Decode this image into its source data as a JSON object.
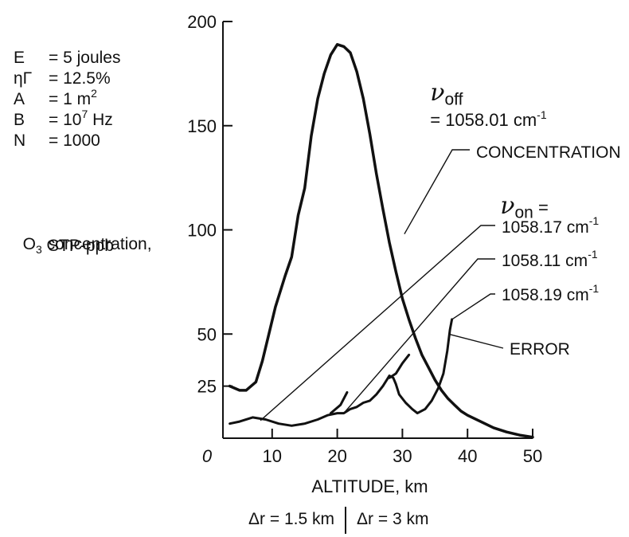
{
  "chart_data": {
    "type": "line",
    "xlabel": "ALTITUDE, km",
    "ylabel": "O3 concentration, STP-ppb",
    "xlim": [
      0,
      50
    ],
    "ylim": [
      0,
      200
    ],
    "x_ticks": [
      "0",
      "10",
      "20",
      "30",
      "40",
      "50"
    ],
    "y_ticks": [
      "25",
      "50",
      "100",
      "150",
      "200"
    ],
    "parameters": [
      {
        "name": "E",
        "value": "= 5 joules"
      },
      {
        "name": "ηΓ",
        "value": "= 12.5%"
      },
      {
        "name": "A",
        "value": "= 1 m",
        "sup": "2"
      },
      {
        "name": "B",
        "value_pre": "= 10",
        "sup": "7",
        "value_post": " Hz"
      },
      {
        "name": "N",
        "value": "= 1000"
      }
    ],
    "ylabel_main": "O",
    "ylabel_sub": "3",
    "ylabel_rest": " concentration,",
    "ylabel_line2": "STP-ppb",
    "nu_off_label": "ν",
    "nu_off_sub": "off",
    "nu_off_value": "= 1058.01 cm",
    "nu_off_exp": "-1",
    "nu_on_label": "ν",
    "nu_on_sub": "on",
    "nu_on_eq": "=",
    "series": [
      {
        "name": "CONCENTRATION",
        "x": [
          3.5,
          5,
          6,
          7.5,
          8.5,
          9.5,
          10.5,
          12,
          13,
          14,
          15,
          16,
          17,
          18,
          19,
          20,
          21,
          22,
          23,
          24,
          25,
          26,
          27,
          28,
          29,
          30,
          31,
          32,
          33,
          34,
          35,
          36,
          37,
          38,
          39,
          40,
          42,
          44,
          46,
          48,
          50
        ],
        "y": [
          25,
          23,
          23,
          27,
          37,
          50,
          63,
          78,
          87,
          107,
          120,
          145,
          163,
          175,
          184,
          189,
          188,
          185,
          176,
          163,
          146,
          127,
          110,
          94,
          80,
          67,
          57,
          48,
          40,
          34,
          28,
          23,
          19,
          16,
          13,
          11,
          8,
          5,
          3,
          1.5,
          0.5
        ]
      },
      {
        "name": "ERROR",
        "x": [
          3.5,
          5,
          7,
          9,
          11,
          13,
          15,
          17,
          18.5,
          20,
          21,
          22,
          23,
          24,
          25,
          26,
          27,
          27.6,
          28,
          28.6,
          29,
          29.5,
          30.5,
          31.5,
          32.3,
          33.5,
          34.5,
          35.5,
          36.3,
          36.9,
          37.3,
          37.6
        ],
        "y": [
          7,
          8,
          10,
          9,
          7,
          6,
          7,
          9,
          11,
          12,
          12,
          14,
          15,
          17,
          18,
          21,
          25,
          28,
          30,
          29,
          26,
          21,
          17,
          14,
          12,
          14,
          18,
          24,
          31,
          42,
          52,
          57
        ]
      },
      {
        "name": "1058.11 cm-1 segment",
        "x": [
          19,
          20.5,
          21.5
        ],
        "y": [
          12,
          16,
          22
        ]
      },
      {
        "name": "1058.19 cm-1 segment",
        "x": [
          28,
          29,
          30,
          31
        ],
        "y": [
          29,
          31,
          36,
          40
        ]
      }
    ],
    "callouts": [
      {
        "text": "CONCENTRATION",
        "label_id": "concentration"
      },
      {
        "text": "1058.17 cm",
        "exp": "-1",
        "label_id": "on1"
      },
      {
        "text": "1058.11 cm",
        "exp": "-1",
        "label_id": "on2"
      },
      {
        "text": "1058.19 cm",
        "exp": "-1",
        "label_id": "on3"
      },
      {
        "text": "ERROR",
        "label_id": "error"
      }
    ],
    "resolution_note_left": "Δr = 1.5 km",
    "resolution_note_right": "Δr = 3 km"
  }
}
